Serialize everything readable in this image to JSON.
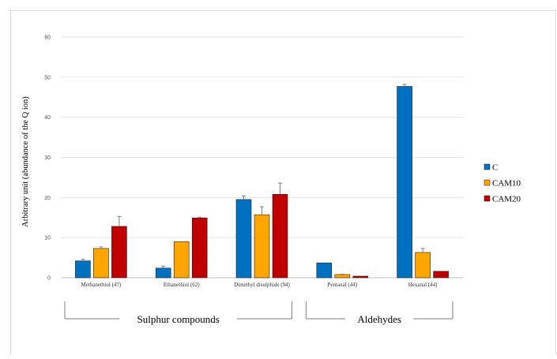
{
  "chart_data": {
    "type": "bar",
    "title": "",
    "xlabel": "",
    "ylabel": "Arbitrary unit (abundance of the Q ion)",
    "ylim": [
      0,
      60
    ],
    "yticks": [
      0,
      10,
      20,
      30,
      40,
      50,
      60
    ],
    "grid": true,
    "legend_position": "right",
    "categories": [
      "Methanethiol (47)",
      "Ethanethiol (62)",
      "Dimethyl disulphide (94)",
      "Pentanal (44)",
      "Hexanal (44)"
    ],
    "series": [
      {
        "name": "C",
        "color": "#0070C0",
        "values": [
          4.2,
          2.4,
          19.5,
          3.7,
          47.7
        ],
        "errors": [
          0.4,
          0.5,
          0.9,
          0.0,
          0.5
        ]
      },
      {
        "name": "CAM10",
        "color": "#FFA500",
        "values": [
          7.3,
          9.0,
          15.7,
          0.8,
          6.3
        ],
        "errors": [
          0.4,
          0.0,
          2.0,
          0.1,
          1.0
        ]
      },
      {
        "name": "CAM20",
        "color": "#C00000",
        "values": [
          12.8,
          14.9,
          20.8,
          0.4,
          1.6
        ],
        "errors": [
          2.5,
          0.2,
          2.8,
          0.0,
          0.0
        ]
      }
    ],
    "groups": [
      {
        "label": "Sulphur compounds",
        "categories": [
          0,
          1,
          2
        ]
      },
      {
        "label": "Aldehydes",
        "categories": [
          3,
          4
        ]
      }
    ]
  }
}
